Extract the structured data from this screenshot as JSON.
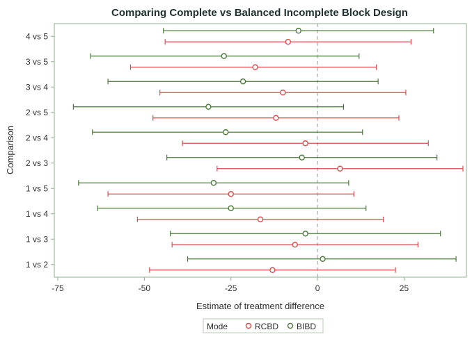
{
  "chart_data": {
    "type": "scatter",
    "title": "Comparing Complete vs Balanced Incomplete Block Design",
    "xlabel": "Estimate of treatment difference",
    "ylabel": "Comparison",
    "xlim": [
      -76,
      43
    ],
    "x_ticks": [
      -75,
      -50,
      -25,
      0,
      25
    ],
    "x_tick_labels": [
      "-75",
      "-50",
      "-25",
      "0",
      "25"
    ],
    "categories": [
      "1 vs 2",
      "1 vs 3",
      "1 vs 4",
      "1 vs 5",
      "2 vs 3",
      "2 vs 4",
      "2 vs 5",
      "3 vs 4",
      "3 vs 5",
      "4 vs 5"
    ],
    "reference_line_x": 0,
    "grid": false,
    "legend": {
      "title": "Mode",
      "placement": "bottom"
    },
    "series": [
      {
        "name": "RCBD",
        "color": "#d94c4c",
        "estimate": [
          -13,
          -6.5,
          -16.5,
          -25,
          6.5,
          -3.5,
          -12,
          -10,
          -18,
          -8.5
        ],
        "lower": [
          -48.5,
          -42,
          -52,
          -60.5,
          -29,
          -39,
          -47.5,
          -45.5,
          -54,
          -44
        ],
        "upper": [
          22.5,
          29,
          19,
          10.5,
          42,
          32,
          23.5,
          25.5,
          17,
          27
        ]
      },
      {
        "name": "BIBD",
        "color": "#4a7a3a",
        "estimate": [
          1.5,
          -3.5,
          -25,
          -30,
          -4.5,
          -26.5,
          -31.5,
          -21.5,
          -27,
          -5.5
        ],
        "lower": [
          -37.5,
          -42.5,
          -63.5,
          -69,
          -43.5,
          -65,
          -70.5,
          -60.5,
          -65.5,
          -44.5
        ],
        "upper": [
          40,
          35.5,
          14,
          9,
          34.5,
          13,
          7.5,
          17.5,
          12,
          33.5
        ]
      }
    ]
  }
}
